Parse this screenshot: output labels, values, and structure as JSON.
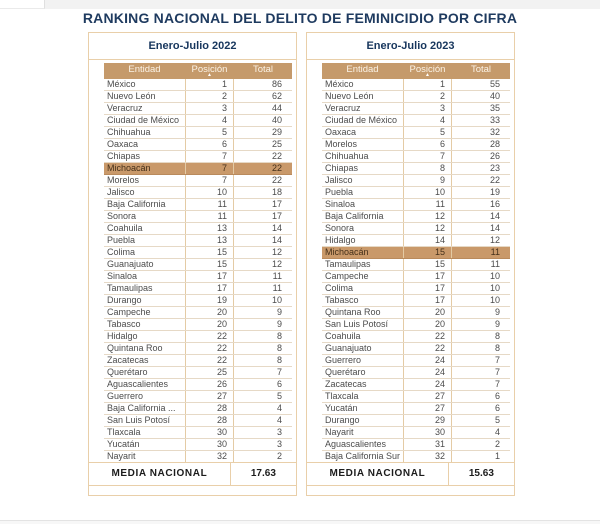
{
  "title": "RANKING NACIONAL DEL DELITO DE FEMINICIDIO POR CIFRA",
  "sort_icon": "▲",
  "colors": {
    "title_navy": "#1e3a5f",
    "header_tan": "#c59a6b",
    "highlight_row_tan": "#c9996a",
    "panel_border": "#e9cfa9"
  },
  "chart_data": [
    {
      "type": "table",
      "title": "Enero-Julio 2022",
      "columns": [
        "Entidad",
        "Posición",
        "Total"
      ],
      "highlighted_row": "Michoacán",
      "rows": [
        [
          "México",
          1,
          86
        ],
        [
          "Nuevo León",
          2,
          62
        ],
        [
          "Veracruz",
          3,
          44
        ],
        [
          "Ciudad de México",
          4,
          40
        ],
        [
          "Chihuahua",
          5,
          29
        ],
        [
          "Oaxaca",
          6,
          25
        ],
        [
          "Chiapas",
          7,
          22
        ],
        [
          "Michoacán",
          7,
          22
        ],
        [
          "Morelos",
          7,
          22
        ],
        [
          "Jalisco",
          10,
          18
        ],
        [
          "Baja California",
          11,
          17
        ],
        [
          "Sonora",
          11,
          17
        ],
        [
          "Coahuila",
          13,
          14
        ],
        [
          "Puebla",
          13,
          14
        ],
        [
          "Colima",
          15,
          12
        ],
        [
          "Guanajuato",
          15,
          12
        ],
        [
          "Sinaloa",
          17,
          11
        ],
        [
          "Tamaulipas",
          17,
          11
        ],
        [
          "Durango",
          19,
          10
        ],
        [
          "Campeche",
          20,
          9
        ],
        [
          "Tabasco",
          20,
          9
        ],
        [
          "Hidalgo",
          22,
          8
        ],
        [
          "Quintana Roo",
          22,
          8
        ],
        [
          "Zacatecas",
          22,
          8
        ],
        [
          "Querétaro",
          25,
          7
        ],
        [
          "Aguascalientes",
          26,
          6
        ],
        [
          "Guerrero",
          27,
          5
        ],
        [
          "Baja California ...",
          28,
          4
        ],
        [
          "San Luis Potosí",
          28,
          4
        ],
        [
          "Tlaxcala",
          30,
          3
        ],
        [
          "Yucatán",
          30,
          3
        ],
        [
          "Nayarit",
          32,
          2
        ]
      ],
      "footer": {
        "label": "MEDIA NACIONAL",
        "value": "17.63"
      }
    },
    {
      "type": "table",
      "title": "Enero-Julio 2023",
      "columns": [
        "Entidad",
        "Posición",
        "Total"
      ],
      "highlighted_row": "Michoacán",
      "rows": [
        [
          "México",
          1,
          55
        ],
        [
          "Nuevo León",
          2,
          40
        ],
        [
          "Veracruz",
          3,
          35
        ],
        [
          "Ciudad de México",
          4,
          33
        ],
        [
          "Oaxaca",
          5,
          32
        ],
        [
          "Morelos",
          6,
          28
        ],
        [
          "Chihuahua",
          7,
          26
        ],
        [
          "Chiapas",
          8,
          23
        ],
        [
          "Jalisco",
          9,
          22
        ],
        [
          "Puebla",
          10,
          19
        ],
        [
          "Sinaloa",
          11,
          16
        ],
        [
          "Baja California",
          12,
          14
        ],
        [
          "Sonora",
          12,
          14
        ],
        [
          "Hidalgo",
          14,
          12
        ],
        [
          "Michoacán",
          15,
          11
        ],
        [
          "Tamaulipas",
          15,
          11
        ],
        [
          "Campeche",
          17,
          10
        ],
        [
          "Colima",
          17,
          10
        ],
        [
          "Tabasco",
          17,
          10
        ],
        [
          "Quintana Roo",
          20,
          9
        ],
        [
          "San Luis Potosí",
          20,
          9
        ],
        [
          "Coahuila",
          22,
          8
        ],
        [
          "Guanajuato",
          22,
          8
        ],
        [
          "Guerrero",
          24,
          7
        ],
        [
          "Querétaro",
          24,
          7
        ],
        [
          "Zacatecas",
          24,
          7
        ],
        [
          "Tlaxcala",
          27,
          6
        ],
        [
          "Yucatán",
          27,
          6
        ],
        [
          "Durango",
          29,
          5
        ],
        [
          "Nayarit",
          30,
          4
        ],
        [
          "Aguascalientes",
          31,
          2
        ],
        [
          "Baja California Sur",
          32,
          1
        ]
      ],
      "footer": {
        "label": "MEDIA NACIONAL",
        "value": "15.63"
      }
    }
  ]
}
